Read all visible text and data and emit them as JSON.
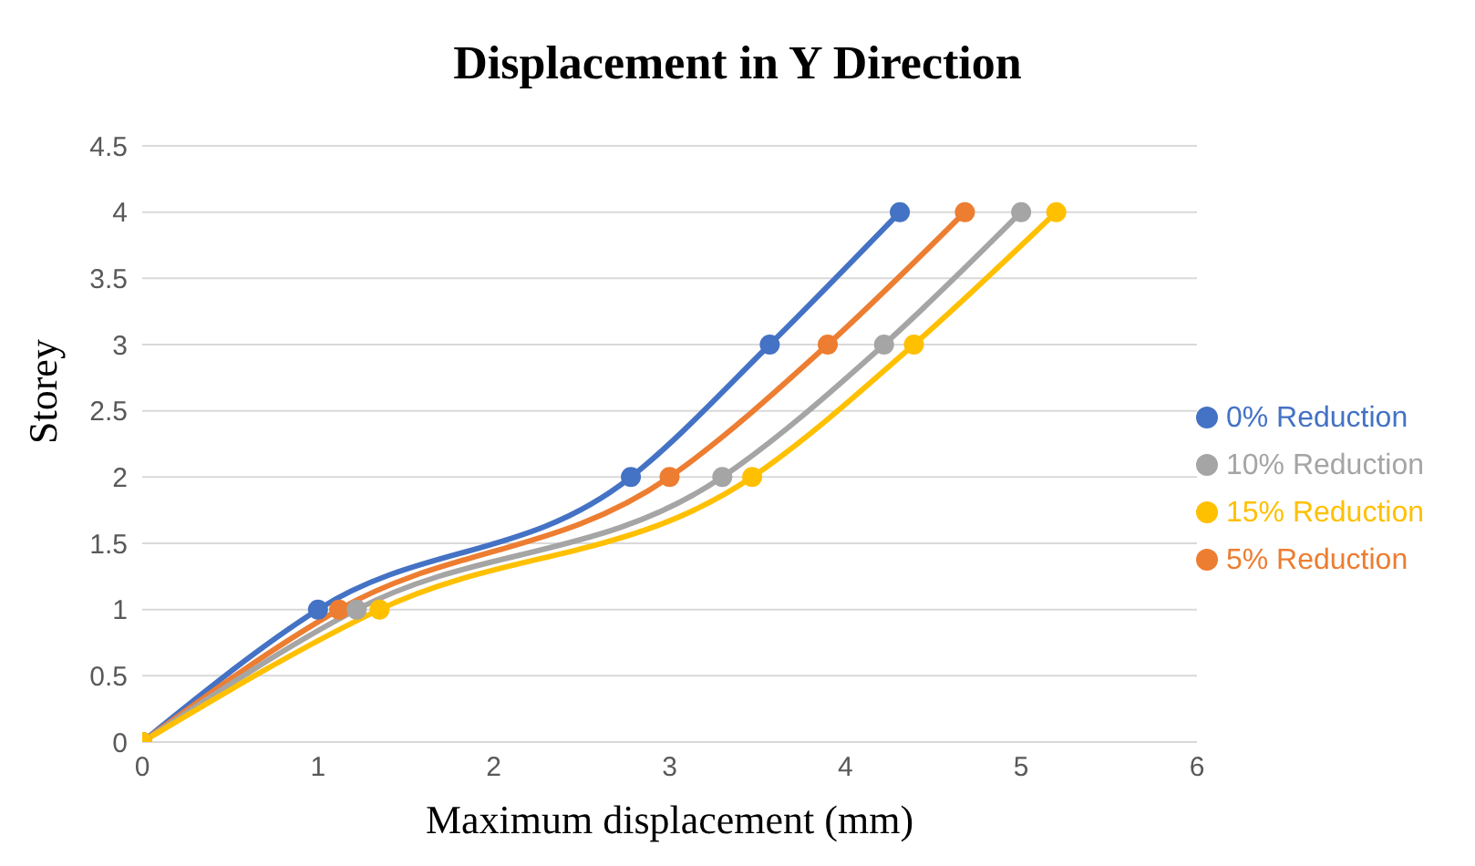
{
  "chart_data": {
    "type": "line",
    "title": "Displacement in Y Direction",
    "xlabel": "Maximum   displacement  (mm)",
    "ylabel": "Storey",
    "xlim": [
      0,
      6
    ],
    "xticks": [
      0,
      1,
      2,
      3,
      4,
      5,
      6
    ],
    "ylim": [
      0,
      4.5
    ],
    "yticks": [
      0,
      0.5,
      1,
      1.5,
      2,
      2.5,
      3,
      3.5,
      4,
      4.5
    ],
    "grid": "y",
    "legend": "right",
    "marker": "circle",
    "line_style": "solid",
    "series": [
      {
        "name": "0% Reduction",
        "color": "#4472c4",
        "x": [
          0,
          1.0,
          2.78,
          3.57,
          4.31
        ],
        "values": [
          0,
          1,
          2,
          3,
          4
        ]
      },
      {
        "name": "5% Reduction",
        "color": "#ed7d31",
        "x": [
          0,
          1.12,
          3.0,
          3.9,
          4.68
        ],
        "values": [
          0,
          1,
          2,
          3,
          4
        ]
      },
      {
        "name": "10% Reduction",
        "color": "#a5a5a5",
        "x": [
          0,
          1.22,
          3.3,
          4.22,
          5.0
        ],
        "values": [
          0,
          1,
          2,
          3,
          4
        ]
      },
      {
        "name": "15% Reduction",
        "color": "#ffc000",
        "x": [
          0,
          1.35,
          3.47,
          4.39,
          5.2
        ],
        "values": [
          0,
          1,
          2,
          3,
          4
        ]
      }
    ]
  }
}
